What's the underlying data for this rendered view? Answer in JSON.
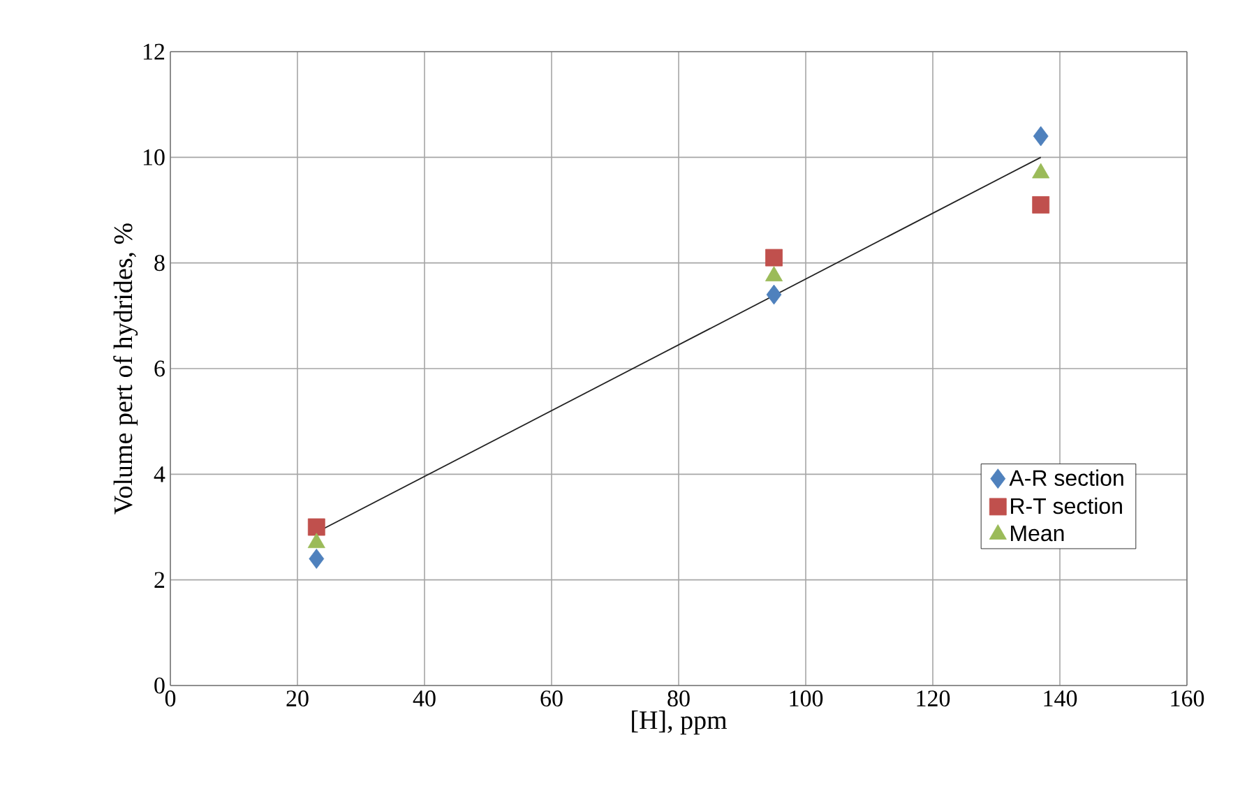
{
  "chart_data": {
    "type": "scatter",
    "xlabel": "[H], ppm",
    "ylabel": "Volume pert of hydrides, %",
    "xlim": [
      0,
      160
    ],
    "xticks": [
      0,
      20,
      40,
      60,
      80,
      100,
      120,
      140,
      160
    ],
    "ylim": [
      0,
      12
    ],
    "yticks": [
      0,
      2,
      4,
      6,
      8,
      10,
      12
    ],
    "grid": true,
    "legend": "right",
    "series": [
      {
        "name": "A-R section",
        "color": "#4f81bd",
        "marker": "diamond",
        "x": [
          23,
          95,
          137
        ],
        "values": [
          2.4,
          7.4,
          10.4
        ]
      },
      {
        "name": "R-T section",
        "color": "#c0504d",
        "marker": "square",
        "x": [
          23,
          95,
          137
        ],
        "values": [
          3.0,
          8.1,
          9.1
        ]
      },
      {
        "name": "Mean",
        "color": "#9bbb59",
        "marker": "triangle",
        "x": [
          23,
          95,
          137
        ],
        "values": [
          2.7,
          7.75,
          9.7
        ]
      },
      {
        "type": "line",
        "color": "#222222",
        "marker": "none",
        "x": [
          23,
          137
        ],
        "values": [
          2.9,
          10.0
        ]
      }
    ]
  }
}
